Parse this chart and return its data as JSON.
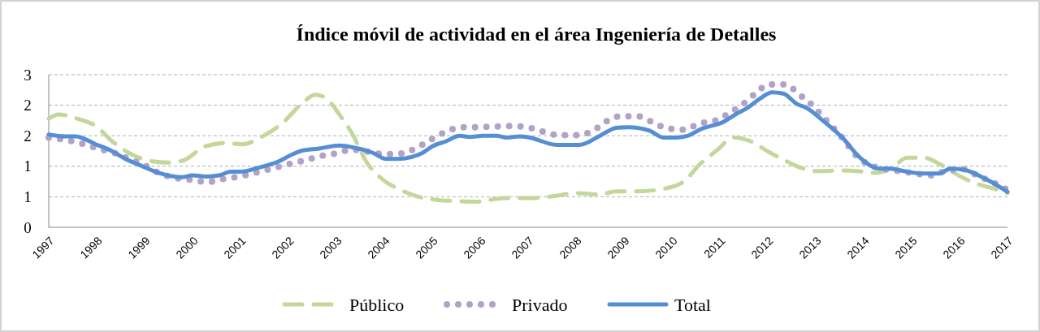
{
  "chart_data": {
    "type": "line",
    "title": "Índice móvil de actividad en el área Ingeniería de Detalles",
    "xlim": [
      1997,
      2017
    ],
    "xticks": [
      1997,
      1998,
      1999,
      2000,
      2001,
      2002,
      2003,
      2004,
      2005,
      2006,
      2007,
      2008,
      2009,
      2010,
      2011,
      2012,
      2013,
      2014,
      2015,
      2016,
      2017
    ],
    "ylim": [
      0,
      2.5
    ],
    "yticks": [
      0,
      {
        "value": 0.5,
        "label": "1"
      },
      1,
      {
        "value": 1.5,
        "label": "2"
      },
      2,
      {
        "value": 2.5,
        "label": "3"
      }
    ],
    "grid": "y",
    "legend": "bottom",
    "series": [
      {
        "name": "Público",
        "color": "#c4d79b",
        "line_style": "dashed",
        "x": [
          1997,
          1997.2,
          1997.63,
          1997.98,
          1998.32,
          1998.74,
          1999.16,
          1999.51,
          1999.79,
          2000.28,
          2000.7,
          2001.04,
          2001.46,
          2001.88,
          2002.23,
          2002.57,
          2002.78,
          2003.06,
          2003.34,
          2003.62,
          2003.97,
          2004.32,
          2004.67,
          2005.08,
          2005.5,
          2005.92,
          2006.2,
          2006.55,
          2007.1,
          2007.53,
          2008,
          2008.5,
          2008.84,
          2009.27,
          2009.82,
          2010.25,
          2010.58,
          2010.95,
          2011.28,
          2011.64,
          2012.05,
          2012.32,
          2012.61,
          2013.02,
          2013.52,
          2013.86,
          2014.28,
          2014.63,
          2014.9,
          2015.26,
          2015.6,
          2015.96,
          2016.3,
          2016.64,
          2017
        ],
        "values": [
          1.78,
          1.85,
          1.77,
          1.66,
          1.41,
          1.19,
          1.08,
          1.06,
          1.09,
          1.33,
          1.38,
          1.36,
          1.49,
          1.71,
          1.99,
          2.17,
          2.12,
          1.85,
          1.52,
          1.08,
          0.78,
          0.62,
          0.51,
          0.45,
          0.43,
          0.42,
          0.45,
          0.48,
          0.48,
          0.51,
          0.56,
          0.54,
          0.59,
          0.59,
          0.63,
          0.75,
          1.03,
          1.27,
          1.47,
          1.41,
          1.22,
          1.11,
          1.0,
          0.92,
          0.93,
          0.92,
          0.89,
          1.0,
          1.14,
          1.14,
          1.03,
          0.86,
          0.73,
          0.65,
          0.56
        ]
      },
      {
        "name": "Privado",
        "color": "#b3a2c7",
        "line_style": "dotted",
        "x": [
          1997,
          1997.35,
          1997.7,
          1998.02,
          1998.36,
          1998.67,
          1998.99,
          1999.3,
          1999.63,
          1999.96,
          2000.3,
          2000.64,
          2000.97,
          2001.3,
          2001.65,
          2001.98,
          2002.31,
          2002.64,
          2002.99,
          2003.32,
          2003.65,
          2004,
          2004.35,
          2004.67,
          2004.98,
          2005.27,
          2005.61,
          2005.94,
          2006.29,
          2006.62,
          2006.98,
          2007.3,
          2007.65,
          2007.99,
          2008.33,
          2008.6,
          2008.93,
          2009.27,
          2009.6,
          2009.9,
          2010.25,
          2010.57,
          2010.91,
          2011.2,
          2011.47,
          2011.74,
          2012.02,
          2012.36,
          2012.65,
          2012.9,
          2013.14,
          2013.38,
          2013.6,
          2013.81,
          2014.08,
          2014.39,
          2014.73,
          2015.09,
          2015.41,
          2015.74,
          2016.08,
          2016.39,
          2016.71,
          2016.98
        ],
        "values": [
          1.47,
          1.43,
          1.37,
          1.29,
          1.22,
          1.12,
          1.02,
          0.89,
          0.81,
          0.78,
          0.74,
          0.79,
          0.83,
          0.89,
          0.96,
          1.03,
          1.09,
          1.16,
          1.21,
          1.27,
          1.24,
          1.2,
          1.21,
          1.3,
          1.44,
          1.56,
          1.64,
          1.64,
          1.65,
          1.66,
          1.64,
          1.57,
          1.51,
          1.51,
          1.57,
          1.72,
          1.82,
          1.82,
          1.72,
          1.62,
          1.6,
          1.7,
          1.75,
          1.87,
          2.01,
          2.19,
          2.34,
          2.34,
          2.18,
          2.02,
          1.82,
          1.62,
          1.42,
          1.2,
          1.04,
          0.96,
          0.92,
          0.88,
          0.85,
          0.93,
          0.95,
          0.84,
          0.73,
          0.62
        ]
      },
      {
        "name": "Total",
        "color": "#558ed5",
        "line_style": "solid",
        "x": [
          1997,
          1997.35,
          1997.56,
          1997.98,
          1998.29,
          1998.6,
          1998.95,
          1999.3,
          1999.79,
          2000,
          2000.28,
          2000.55,
          2000.8,
          2001,
          2001.39,
          2001.77,
          2002.02,
          2002.26,
          2002.64,
          2003.06,
          2003.34,
          2003.76,
          2004.04,
          2004.28,
          2004.56,
          2004.8,
          2005.01,
          2005.29,
          2005.57,
          2005.78,
          2006.06,
          2006.34,
          2006.55,
          2006.83,
          2007.03,
          2007.6,
          2008.07,
          2008.5,
          2008.84,
          2009.1,
          2009.54,
          2009.82,
          2010.1,
          2010.34,
          2010.58,
          2011.08,
          2011.35,
          2011.56,
          2011.84,
          2012.09,
          2012.32,
          2012.61,
          2012.82,
          2013.16,
          2013.59,
          2013.86,
          2014.1,
          2014.32,
          2014.56,
          2014.84,
          2015.26,
          2015.57,
          2015.81,
          2016.1,
          2016.57,
          2016.86,
          2017
        ],
        "values": [
          1.52,
          1.49,
          1.49,
          1.36,
          1.26,
          1.12,
          1.0,
          0.89,
          0.82,
          0.85,
          0.83,
          0.85,
          0.91,
          0.91,
          0.98,
          1.07,
          1.17,
          1.25,
          1.29,
          1.34,
          1.31,
          1.22,
          1.12,
          1.12,
          1.15,
          1.22,
          1.33,
          1.41,
          1.5,
          1.48,
          1.5,
          1.5,
          1.47,
          1.49,
          1.47,
          1.35,
          1.35,
          1.5,
          1.63,
          1.64,
          1.58,
          1.47,
          1.47,
          1.5,
          1.6,
          1.73,
          1.86,
          1.95,
          2.11,
          2.21,
          2.19,
          2.02,
          1.95,
          1.74,
          1.44,
          1.19,
          1.03,
          0.96,
          0.96,
          0.92,
          0.88,
          0.88,
          0.96,
          0.94,
          0.78,
          0.65,
          0.58
        ]
      }
    ]
  }
}
